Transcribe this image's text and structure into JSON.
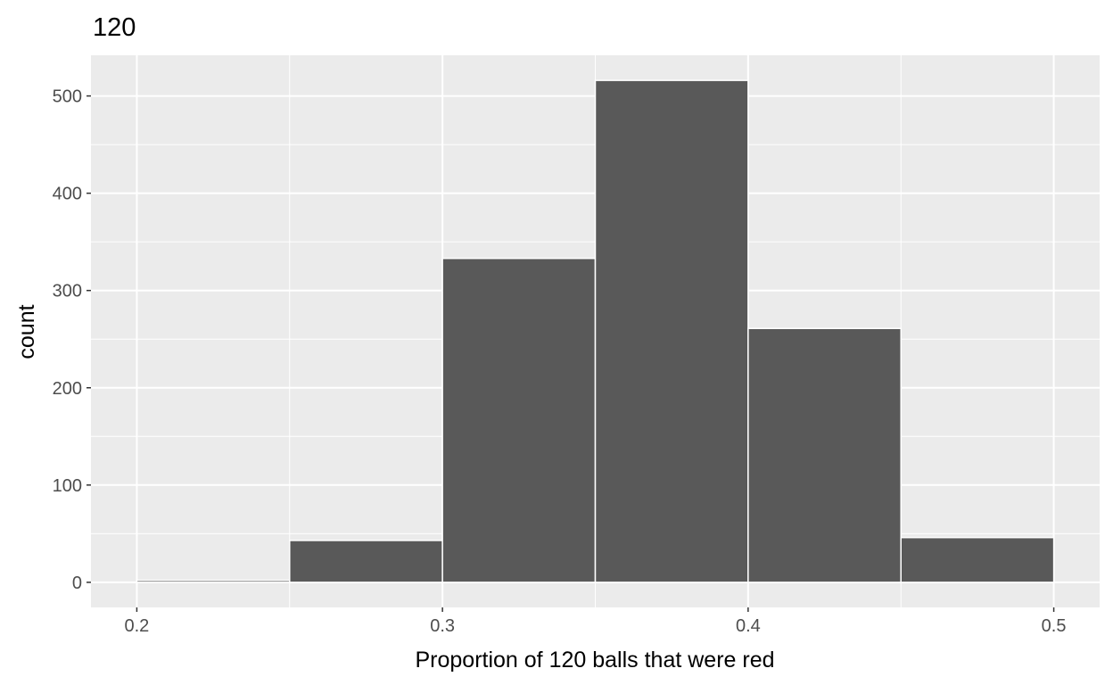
{
  "chart_data": {
    "type": "bar",
    "title": "120",
    "xlabel": "Proportion of 120 balls that were red",
    "ylabel": "count",
    "bin_width": 0.05,
    "bins": [
      {
        "start": 0.2,
        "end": 0.25,
        "count": 2
      },
      {
        "start": 0.25,
        "end": 0.3,
        "count": 43
      },
      {
        "start": 0.3,
        "end": 0.35,
        "count": 333
      },
      {
        "start": 0.35,
        "end": 0.4,
        "count": 516
      },
      {
        "start": 0.4,
        "end": 0.45,
        "count": 261
      },
      {
        "start": 0.45,
        "end": 0.5,
        "count": 46
      }
    ],
    "xlim": [
      0.185,
      0.515
    ],
    "ylim": [
      -25.8,
      541.8
    ],
    "x_ticks": [
      0.2,
      0.3,
      0.4,
      0.5
    ],
    "x_tick_labels": [
      "0.2",
      "0.3",
      "0.4",
      "0.5"
    ],
    "y_ticks": [
      0,
      100,
      200,
      300,
      400,
      500
    ],
    "y_tick_labels": [
      "0",
      "100",
      "200",
      "300",
      "400",
      "500"
    ],
    "grid": true,
    "colors": {
      "panel_background": "#ebebeb",
      "grid": "#ffffff",
      "bar_fill": "#595959",
      "bar_outline": "#ffffff"
    }
  }
}
